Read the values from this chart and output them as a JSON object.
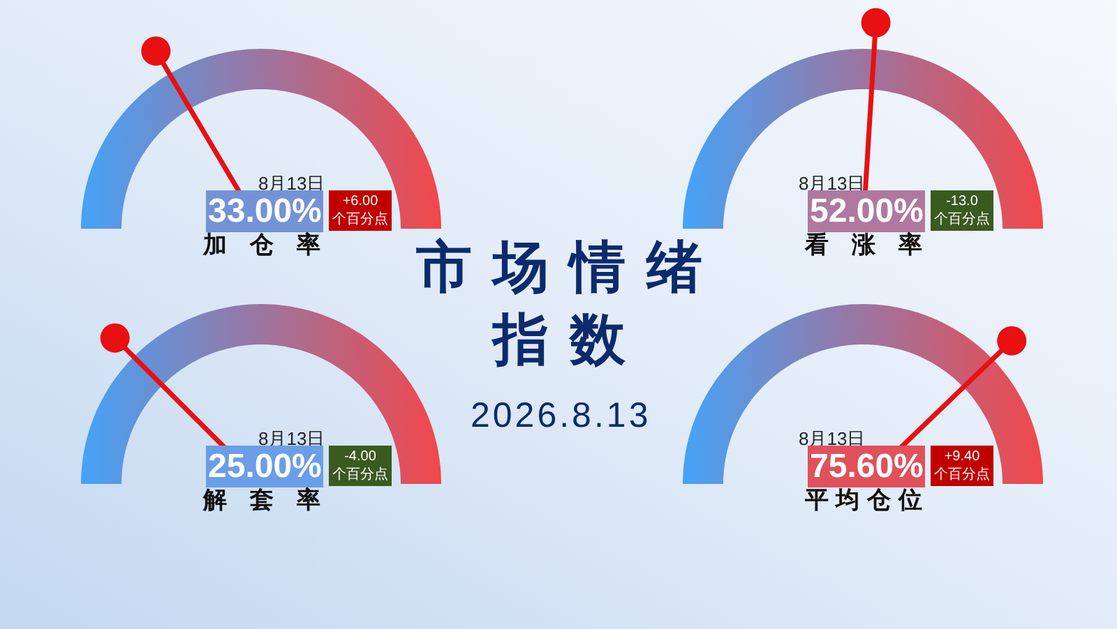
{
  "chart_data": [
    {
      "type": "other",
      "title": "加仓率",
      "values": [
        33.0,
        6.0
      ],
      "value_labels": [
        "33.00%",
        "+6.00"
      ],
      "colors": [
        "#7393d6",
        "#c00000"
      ],
      "annotations": [
        "8月13日",
        "个百分点"
      ]
    },
    {
      "type": "other",
      "title": "看涨率",
      "values": [
        52.0,
        -13.0
      ],
      "value_labels": [
        "52.00%",
        "-13.0"
      ],
      "colors": [
        "#b0789f",
        "#3b5a20"
      ],
      "annotations": [
        "8月13日",
        "个百分点"
      ]
    },
    {
      "type": "other",
      "title": "市场情绪指数",
      "subtitle": "2026.8.13"
    },
    {
      "type": "other",
      "title": "解套率",
      "values": [
        25.0,
        -4.0
      ],
      "value_labels": [
        "25.00%",
        "-4.00"
      ],
      "colors": [
        "#6a9ee6",
        "#3b5a20"
      ],
      "annotations": [
        "8月13日",
        "个百分点"
      ]
    },
    {
      "type": "other",
      "title": "平均仓位",
      "values": [
        75.6,
        9.4
      ],
      "value_labels": [
        "75.60%",
        "+9.40"
      ],
      "colors": [
        "#e0515c",
        "#c00000"
      ],
      "annotations": [
        "8月13日",
        "个百分点"
      ]
    }
  ]
}
